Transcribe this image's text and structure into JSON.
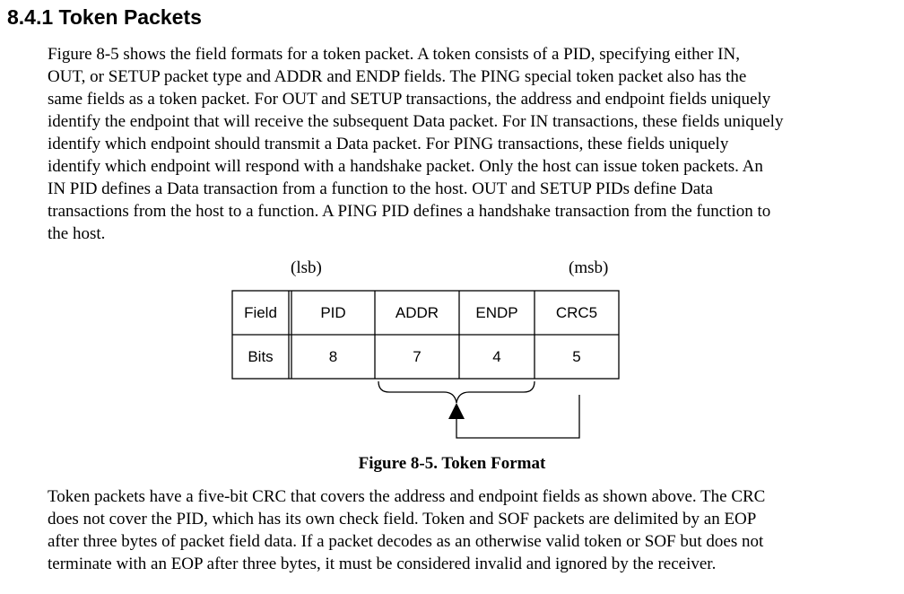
{
  "heading": "8.4.1 Token Packets",
  "paragraph1": [
    "Figure 8-5 shows the field formats for a token packet.  A token consists of a PID, specifying either IN,",
    "OUT, or SETUP packet type and ADDR and ENDP fields.  The PING special token packet also has the",
    "same fields as a token packet.  For OUT and SETUP transactions, the address and endpoint fields uniquely",
    "identify the endpoint that will receive the subsequent Data packet.  For IN transactions, these fields uniquely",
    "identify which endpoint should transmit a Data packet.  For PING transactions, these fields uniquely",
    "identify which endpoint will respond with a handshake packet. Only the host can issue token packets.  An",
    "IN PID defines a Data transaction from a function to the host.  OUT and SETUP PIDs define Data",
    "transactions from the host to a function.  A PING PID defines a handshake transaction from the function to",
    "the host."
  ],
  "figure": {
    "lsb_label": "(lsb)",
    "msb_label": "(msb)",
    "table": {
      "row_headers": [
        "Field",
        "Bits"
      ],
      "columns": [
        {
          "field": "PID",
          "bits": "8"
        },
        {
          "field": "ADDR",
          "bits": "7"
        },
        {
          "field": "ENDP",
          "bits": "4"
        },
        {
          "field": "CRC5",
          "bits": "5"
        }
      ]
    },
    "caption": "Figure 8-5.  Token Format"
  },
  "paragraph2": [
    "Token packets have a five-bit CRC that covers the address and endpoint fields as shown above.  The CRC",
    "does not cover the PID, which has its own check field.  Token and SOF packets are delimited by an EOP",
    "after three bytes of packet field data.  If a packet decodes as an otherwise valid token or SOF but does not",
    "terminate with an EOP after three bytes, it must be considered invalid and ignored by the receiver."
  ]
}
